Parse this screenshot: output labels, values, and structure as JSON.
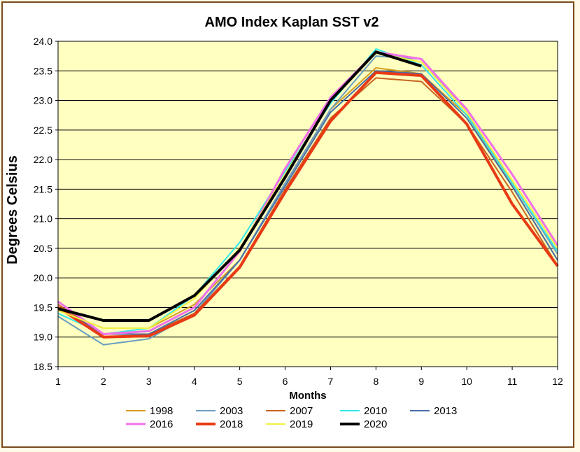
{
  "chart_data": {
    "type": "line",
    "title": "AMO Index Kaplan SST v2",
    "xlabel": "Months",
    "ylabel": "Degrees Celsius",
    "x": [
      1,
      2,
      3,
      4,
      5,
      6,
      7,
      8,
      9,
      10,
      11,
      12
    ],
    "xlim": [
      1,
      12
    ],
    "ylim": [
      18.5,
      24.0
    ],
    "yticks": [
      "18.5",
      "19.0",
      "19.5",
      "20.0",
      "20.5",
      "21.0",
      "21.5",
      "22.0",
      "22.5",
      "23.0",
      "23.5",
      "24.0"
    ],
    "xticks": [
      "1",
      "2",
      "3",
      "4",
      "5",
      "6",
      "7",
      "8",
      "9",
      "10",
      "11",
      "12"
    ],
    "grid": "horizontal",
    "legend_position": "bottom",
    "plot_background": "#ffffc0",
    "series": [
      {
        "name": "1998",
        "color": "#d4a020",
        "width": 2,
        "values": [
          19.45,
          19.15,
          19.15,
          19.55,
          20.3,
          21.6,
          22.85,
          23.55,
          23.45,
          22.75,
          21.55,
          20.3
        ]
      },
      {
        "name": "2003",
        "color": "#6a9ec0",
        "width": 2,
        "values": [
          19.35,
          18.87,
          18.97,
          19.4,
          20.3,
          21.6,
          22.85,
          23.75,
          23.7,
          22.8,
          21.6,
          20.4
        ]
      },
      {
        "name": "2007",
        "color": "#c86420",
        "width": 2,
        "values": [
          19.55,
          19.05,
          19.05,
          19.4,
          20.2,
          21.5,
          22.7,
          23.38,
          23.32,
          22.6,
          21.45,
          20.2
        ]
      },
      {
        "name": "2010",
        "color": "#33e8e8",
        "width": 2,
        "values": [
          19.4,
          19.05,
          19.15,
          19.7,
          20.6,
          21.8,
          22.95,
          23.87,
          23.6,
          22.75,
          21.6,
          20.45
        ]
      },
      {
        "name": "2013",
        "color": "#4a6ea8",
        "width": 2,
        "values": [
          19.5,
          19.05,
          19.05,
          19.45,
          20.3,
          21.55,
          22.8,
          23.5,
          23.45,
          22.7,
          21.55,
          20.3
        ]
      },
      {
        "name": "2016",
        "color": "#f070e8",
        "width": 3,
        "values": [
          19.6,
          19.05,
          19.1,
          19.5,
          20.45,
          21.85,
          23.05,
          23.82,
          23.7,
          22.85,
          21.75,
          20.55
        ]
      },
      {
        "name": "2018",
        "color": "#e83a14",
        "width": 4,
        "values": [
          19.5,
          19.0,
          19.02,
          19.37,
          20.18,
          21.45,
          22.65,
          23.47,
          23.42,
          22.6,
          21.25,
          20.2
        ]
      },
      {
        "name": "2019",
        "color": "#f2f040",
        "width": 2,
        "values": [
          19.45,
          19.15,
          19.15,
          19.65,
          20.5,
          21.75,
          23.0,
          23.8,
          23.65,
          22.8,
          21.65,
          20.5
        ]
      },
      {
        "name": "2020",
        "color": "#000000",
        "width": 4,
        "values": [
          19.48,
          19.28,
          19.28,
          19.7,
          20.47,
          21.7,
          23.0,
          23.82,
          23.58,
          null,
          null,
          null
        ]
      }
    ]
  }
}
